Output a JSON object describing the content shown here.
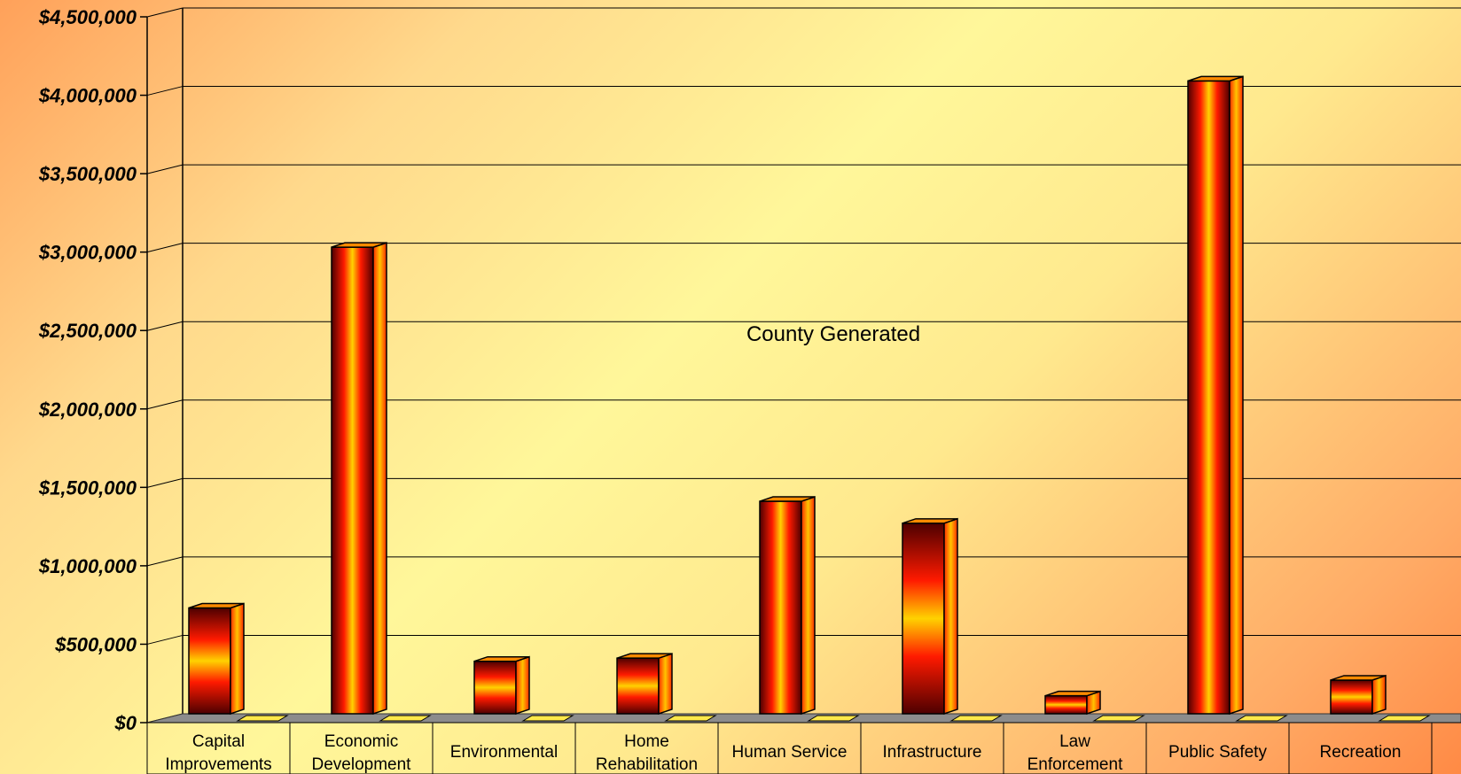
{
  "chart_data": {
    "type": "bar",
    "title": "",
    "xlabel": "",
    "ylabel": "",
    "annotation": "County Generated",
    "categories": [
      [
        "Capital",
        "Improvements"
      ],
      [
        "Economic",
        "Development"
      ],
      [
        "Environmental"
      ],
      [
        "Home",
        "Rehabilitation"
      ],
      [
        "Human Service"
      ],
      [
        "Infrastructure"
      ],
      [
        "Law",
        "Enforcement"
      ],
      [
        "Public Safety"
      ],
      [
        "Recreation"
      ]
    ],
    "series": [
      {
        "values": [
          720000,
          3020000,
          380000,
          400000,
          1400000,
          1260000,
          160000,
          4080000,
          260000
        ]
      },
      {
        "values": [
          0,
          0,
          0,
          0,
          0,
          0,
          0,
          0,
          0
        ]
      }
    ],
    "ylim": [
      0,
      4500000
    ],
    "yticks": [
      0,
      500000,
      1000000,
      1500000,
      2000000,
      2500000,
      3000000,
      3500000,
      4000000,
      4500000
    ],
    "ytick_labels": [
      "$0",
      "$500,000",
      "$1,000,000",
      "$1,500,000",
      "$2,000,000",
      "$2,500,000",
      "$3,000,000",
      "$3,500,000",
      "$4,000,000",
      "$4,500,000"
    ],
    "grid": true,
    "style": "3d-column",
    "colors": {
      "bar_dark": "#4d0000",
      "bar_mid": "#ff1a00",
      "bar_light": "#ffd200",
      "floor": "#8c8c8c"
    }
  }
}
